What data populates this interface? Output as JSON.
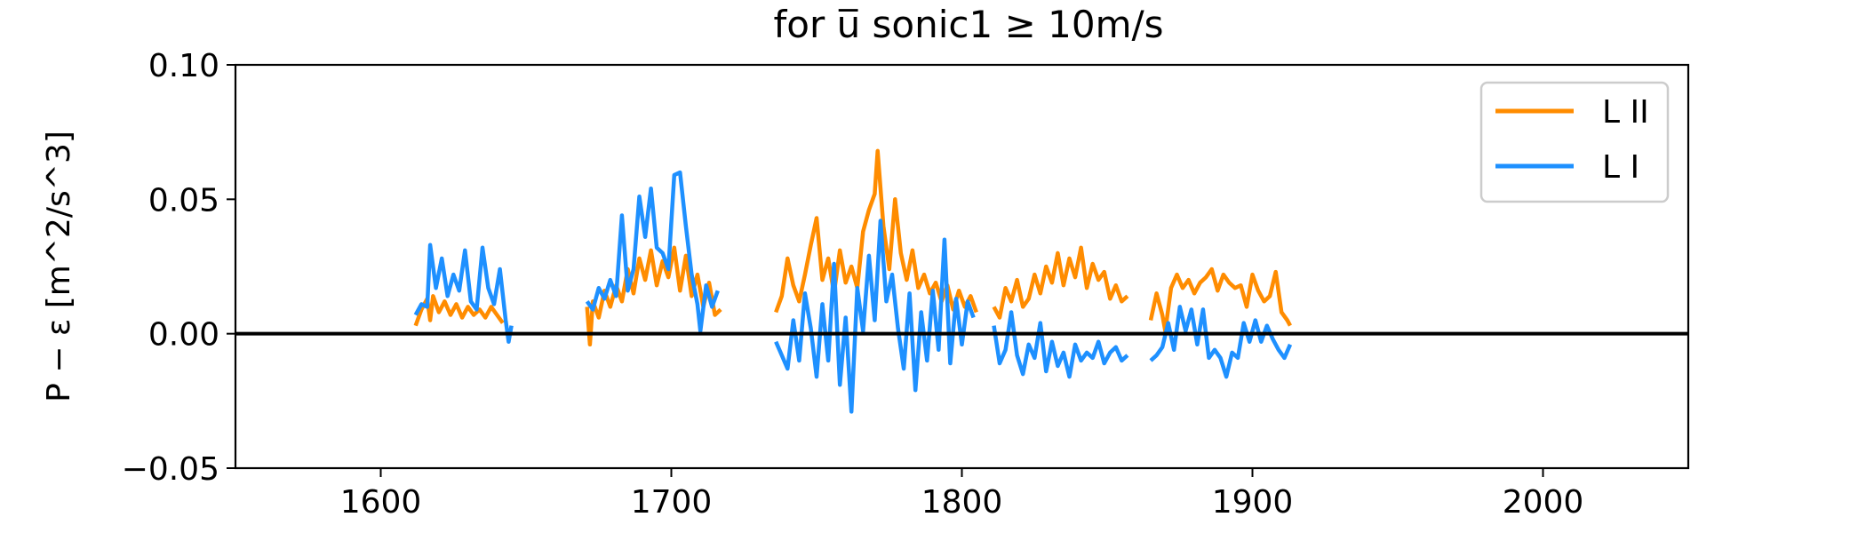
{
  "chart_data": {
    "type": "line",
    "title": "for u̅ sonic1  ≥  10m/s",
    "ylabel": "P − ε [m^2/s^3]",
    "xlabel": "",
    "xlim": [
      1550,
      2050
    ],
    "ylim": [
      -0.05,
      0.1
    ],
    "xticks": [
      1600,
      1700,
      1800,
      1900,
      2000
    ],
    "yticks": [
      -0.05,
      0.0,
      0.05,
      0.1
    ],
    "ytick_labels": [
      "−0.05",
      "0.00",
      "0.05",
      "0.10"
    ],
    "xtick_labels": [
      "1600",
      "1700",
      "1800",
      "1900",
      "2000"
    ],
    "grid": false,
    "legend_position": "top-right",
    "hline": 0.0,
    "series": [
      {
        "name": "L II",
        "color": "#ff8c00",
        "segments": [
          [
            [
              1612,
              0.003
            ],
            [
              1614,
              0.009
            ],
            [
              1616,
              0.013
            ],
            [
              1617,
              0.005
            ],
            [
              1618,
              0.014
            ],
            [
              1620,
              0.008
            ],
            [
              1622,
              0.012
            ],
            [
              1624,
              0.007
            ],
            [
              1626,
              0.011
            ],
            [
              1628,
              0.006
            ],
            [
              1630,
              0.01
            ],
            [
              1632,
              0.007
            ],
            [
              1634,
              0.009
            ],
            [
              1636,
              0.006
            ],
            [
              1638,
              0.01
            ],
            [
              1640,
              0.007
            ],
            [
              1642,
              0.004
            ]
          ],
          [
            [
              1671,
              0.01
            ],
            [
              1672,
              -0.004
            ],
            [
              1673,
              0.012
            ],
            [
              1675,
              0.006
            ],
            [
              1677,
              0.016
            ],
            [
              1679,
              0.01
            ],
            [
              1681,
              0.018
            ],
            [
              1683,
              0.012
            ],
            [
              1685,
              0.024
            ],
            [
              1687,
              0.015
            ],
            [
              1689,
              0.028
            ],
            [
              1691,
              0.02
            ],
            [
              1693,
              0.031
            ],
            [
              1695,
              0.018
            ],
            [
              1697,
              0.027
            ],
            [
              1699,
              0.021
            ],
            [
              1701,
              0.032
            ],
            [
              1703,
              0.016
            ],
            [
              1705,
              0.029
            ],
            [
              1707,
              0.014
            ],
            [
              1709,
              0.022
            ],
            [
              1711,
              0.01
            ],
            [
              1713,
              0.019
            ],
            [
              1715,
              0.007
            ],
            [
              1717,
              0.009
            ]
          ],
          [
            [
              1736,
              0.008
            ],
            [
              1738,
              0.014
            ],
            [
              1740,
              0.028
            ],
            [
              1742,
              0.018
            ],
            [
              1744,
              0.012
            ],
            [
              1746,
              0.022
            ],
            [
              1748,
              0.033
            ],
            [
              1750,
              0.043
            ],
            [
              1752,
              0.02
            ],
            [
              1754,
              0.028
            ],
            [
              1756,
              0.015
            ],
            [
              1758,
              0.031
            ],
            [
              1760,
              0.019
            ],
            [
              1762,
              0.025
            ],
            [
              1764,
              0.017
            ],
            [
              1766,
              0.038
            ],
            [
              1768,
              0.046
            ],
            [
              1770,
              0.052
            ],
            [
              1771,
              0.068
            ],
            [
              1773,
              0.04
            ],
            [
              1775,
              0.024
            ],
            [
              1777,
              0.05
            ],
            [
              1779,
              0.03
            ],
            [
              1781,
              0.02
            ],
            [
              1783,
              0.031
            ],
            [
              1785,
              0.017
            ],
            [
              1787,
              0.022
            ],
            [
              1789,
              0.015
            ],
            [
              1791,
              0.019
            ],
            [
              1793,
              0.012
            ],
            [
              1795,
              0.018
            ],
            [
              1797,
              0.009
            ],
            [
              1799,
              0.016
            ],
            [
              1801,
              0.01
            ],
            [
              1803,
              0.014
            ],
            [
              1805,
              0.008
            ]
          ],
          [
            [
              1811,
              0.01
            ],
            [
              1813,
              0.006
            ],
            [
              1815,
              0.017
            ],
            [
              1817,
              0.012
            ],
            [
              1819,
              0.02
            ],
            [
              1821,
              0.01
            ],
            [
              1823,
              0.013
            ],
            [
              1825,
              0.022
            ],
            [
              1827,
              0.015
            ],
            [
              1829,
              0.025
            ],
            [
              1831,
              0.019
            ],
            [
              1833,
              0.03
            ],
            [
              1835,
              0.018
            ],
            [
              1837,
              0.028
            ],
            [
              1839,
              0.021
            ],
            [
              1841,
              0.032
            ],
            [
              1843,
              0.017
            ],
            [
              1845,
              0.026
            ],
            [
              1847,
              0.02
            ],
            [
              1849,
              0.023
            ],
            [
              1851,
              0.013
            ],
            [
              1853,
              0.018
            ],
            [
              1855,
              0.012
            ],
            [
              1857,
              0.014
            ]
          ],
          [
            [
              1865,
              0.005
            ],
            [
              1867,
              0.015
            ],
            [
              1869,
              0.007
            ],
            [
              1870,
              0.001
            ],
            [
              1872,
              0.017
            ],
            [
              1874,
              0.022
            ],
            [
              1876,
              0.017
            ],
            [
              1878,
              0.02
            ],
            [
              1880,
              0.015
            ],
            [
              1882,
              0.019
            ],
            [
              1884,
              0.021
            ],
            [
              1886,
              0.024
            ],
            [
              1888,
              0.016
            ],
            [
              1890,
              0.022
            ],
            [
              1892,
              0.019
            ],
            [
              1894,
              0.017
            ],
            [
              1896,
              0.018
            ],
            [
              1898,
              0.01
            ],
            [
              1900,
              0.022
            ],
            [
              1902,
              0.016
            ],
            [
              1904,
              0.012
            ],
            [
              1906,
              0.014
            ],
            [
              1908,
              0.023
            ],
            [
              1910,
              0.008
            ],
            [
              1912,
              0.005
            ],
            [
              1913,
              0.003
            ]
          ]
        ]
      },
      {
        "name": "L I",
        "color": "#1e90ff",
        "segments": [
          [
            [
              1612,
              0.007
            ],
            [
              1614,
              0.011
            ],
            [
              1616,
              0.01
            ],
            [
              1617,
              0.033
            ],
            [
              1619,
              0.017
            ],
            [
              1621,
              0.028
            ],
            [
              1623,
              0.014
            ],
            [
              1625,
              0.022
            ],
            [
              1627,
              0.016
            ],
            [
              1629,
              0.031
            ],
            [
              1631,
              0.012
            ],
            [
              1633,
              0.009
            ],
            [
              1635,
              0.032
            ],
            [
              1637,
              0.017
            ],
            [
              1639,
              0.011
            ],
            [
              1641,
              0.024
            ],
            [
              1643,
              0.005
            ],
            [
              1644,
              -0.003
            ],
            [
              1645,
              0.003
            ]
          ],
          [
            [
              1671,
              0.012
            ],
            [
              1673,
              0.009
            ],
            [
              1675,
              0.017
            ],
            [
              1677,
              0.013
            ],
            [
              1679,
              0.02
            ],
            [
              1681,
              0.014
            ],
            [
              1683,
              0.044
            ],
            [
              1685,
              0.016
            ],
            [
              1687,
              0.024
            ],
            [
              1689,
              0.051
            ],
            [
              1691,
              0.036
            ],
            [
              1693,
              0.054
            ],
            [
              1695,
              0.032
            ],
            [
              1697,
              0.03
            ],
            [
              1699,
              0.024
            ],
            [
              1701,
              0.059
            ],
            [
              1703,
              0.06
            ],
            [
              1705,
              0.04
            ],
            [
              1707,
              0.022
            ],
            [
              1709,
              0.011
            ],
            [
              1710,
              0.001
            ],
            [
              1712,
              0.018
            ],
            [
              1714,
              0.01
            ],
            [
              1716,
              0.016
            ]
          ],
          [
            [
              1736,
              -0.003
            ],
            [
              1738,
              -0.008
            ],
            [
              1740,
              -0.013
            ],
            [
              1742,
              0.005
            ],
            [
              1744,
              -0.01
            ],
            [
              1746,
              0.015
            ],
            [
              1748,
              0.002
            ],
            [
              1750,
              -0.016
            ],
            [
              1752,
              0.011
            ],
            [
              1754,
              -0.01
            ],
            [
              1756,
              0.026
            ],
            [
              1758,
              -0.019
            ],
            [
              1760,
              0.006
            ],
            [
              1762,
              -0.029
            ],
            [
              1764,
              0.017
            ],
            [
              1766,
              0.001
            ],
            [
              1768,
              0.029
            ],
            [
              1770,
              0.005
            ],
            [
              1772,
              0.042
            ],
            [
              1774,
              0.012
            ],
            [
              1776,
              0.022
            ],
            [
              1778,
              0.002
            ],
            [
              1780,
              -0.013
            ],
            [
              1782,
              0.015
            ],
            [
              1784,
              -0.021
            ],
            [
              1786,
              0.008
            ],
            [
              1788,
              -0.01
            ],
            [
              1790,
              0.016
            ],
            [
              1792,
              -0.006
            ],
            [
              1794,
              0.035
            ],
            [
              1796,
              -0.011
            ],
            [
              1798,
              0.013
            ],
            [
              1800,
              -0.004
            ],
            [
              1802,
              0.012
            ],
            [
              1804,
              0.006
            ]
          ],
          [
            [
              1811,
              0.003
            ],
            [
              1813,
              -0.011
            ],
            [
              1815,
              -0.006
            ],
            [
              1817,
              0.008
            ],
            [
              1819,
              -0.008
            ],
            [
              1821,
              -0.015
            ],
            [
              1823,
              -0.004
            ],
            [
              1825,
              -0.009
            ],
            [
              1827,
              0.004
            ],
            [
              1829,
              -0.014
            ],
            [
              1831,
              -0.003
            ],
            [
              1833,
              -0.012
            ],
            [
              1835,
              -0.007
            ],
            [
              1837,
              -0.016
            ],
            [
              1839,
              -0.004
            ],
            [
              1841,
              -0.01
            ],
            [
              1843,
              -0.007
            ],
            [
              1845,
              -0.009
            ],
            [
              1847,
              -0.003
            ],
            [
              1849,
              -0.011
            ],
            [
              1851,
              -0.007
            ],
            [
              1853,
              -0.005
            ],
            [
              1855,
              -0.01
            ],
            [
              1857,
              -0.008
            ]
          ],
          [
            [
              1865,
              -0.01
            ],
            [
              1867,
              -0.008
            ],
            [
              1869,
              -0.005
            ],
            [
              1871,
              0.004
            ],
            [
              1873,
              -0.006
            ],
            [
              1875,
              0.01
            ],
            [
              1877,
              0.001
            ],
            [
              1879,
              0.009
            ],
            [
              1881,
              -0.004
            ],
            [
              1883,
              0.009
            ],
            [
              1885,
              -0.009
            ],
            [
              1887,
              -0.006
            ],
            [
              1889,
              -0.009
            ],
            [
              1891,
              -0.016
            ],
            [
              1893,
              -0.007
            ],
            [
              1895,
              -0.009
            ],
            [
              1897,
              0.004
            ],
            [
              1899,
              -0.003
            ],
            [
              1901,
              0.005
            ],
            [
              1903,
              -0.003
            ],
            [
              1905,
              0.003
            ],
            [
              1907,
              -0.002
            ],
            [
              1909,
              -0.006
            ],
            [
              1911,
              -0.009
            ],
            [
              1913,
              -0.004
            ]
          ]
        ]
      }
    ]
  }
}
